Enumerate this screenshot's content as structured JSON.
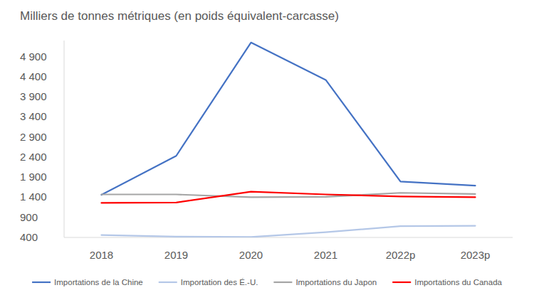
{
  "chart_data": {
    "type": "line",
    "title": "Milliers de tonnes métriques (en poids équivalent-carcasse)",
    "categories": [
      "2018",
      "2019",
      "2020",
      "2021",
      "2022p",
      "2023p"
    ],
    "series": [
      {
        "name": "Importations de la Chine",
        "color": "#4472c4",
        "values": [
          1460,
          2430,
          5250,
          4320,
          1790,
          1690
        ]
      },
      {
        "name": "Importation des É.-U.",
        "color": "#b4c7e7",
        "values": [
          460,
          420,
          410,
          530,
          680,
          690
        ]
      },
      {
        "name": "Importations du Japon",
        "color": "#a5a5a5",
        "values": [
          1470,
          1470,
          1400,
          1410,
          1510,
          1480
        ]
      },
      {
        "name": "Importations du Canada",
        "color": "#ff0000",
        "values": [
          1260,
          1270,
          1540,
          1470,
          1420,
          1400
        ]
      }
    ],
    "ylim": [
      400,
      5300
    ],
    "yticks": [
      400,
      900,
      {
        "value": 1400,
        "label": "1 400"
      },
      {
        "value": 1900,
        "label": "1 900"
      },
      {
        "value": 2400,
        "label": "2 400"
      },
      {
        "value": 2900,
        "label": "2 900"
      },
      {
        "value": 3400,
        "label": "3 400"
      },
      {
        "value": 3900,
        "label": "3 900"
      },
      {
        "value": 4400,
        "label": "4 400"
      },
      {
        "value": 4900,
        "label": "4 900"
      }
    ],
    "grid": false,
    "legend": "bottom"
  }
}
